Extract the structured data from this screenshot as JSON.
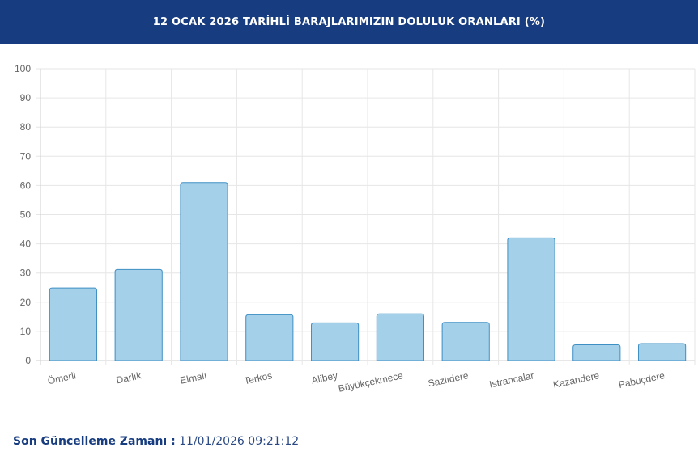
{
  "header": {
    "title": "12 OCAK 2026 TARİHLİ BARAJLARIMIZIN DOLULUK ORANLARI (%)"
  },
  "footer": {
    "label": "Son Güncelleme Zamanı :",
    "value": "11/01/2026 09:21:12"
  },
  "colors": {
    "header_bg": "#173c7f",
    "bar_fill": "#a5d0ea",
    "bar_stroke": "#3e8fc4"
  },
  "chart_data": {
    "type": "bar",
    "categories": [
      "Ömerli",
      "Darlık",
      "Elmalı",
      "Terkos",
      "Alibey",
      "Büyükçekmece",
      "Sazlıdere",
      "Istrancalar",
      "Kazandere",
      "Pabuçdere"
    ],
    "values": [
      24.9,
      31.2,
      61.0,
      15.7,
      12.9,
      16.0,
      13.1,
      42.0,
      5.4,
      5.8
    ],
    "yticks": [
      0,
      10,
      20,
      30,
      40,
      50,
      60,
      70,
      80,
      90,
      100
    ],
    "ylim": [
      0,
      100
    ],
    "grid": true,
    "legend": "none"
  }
}
